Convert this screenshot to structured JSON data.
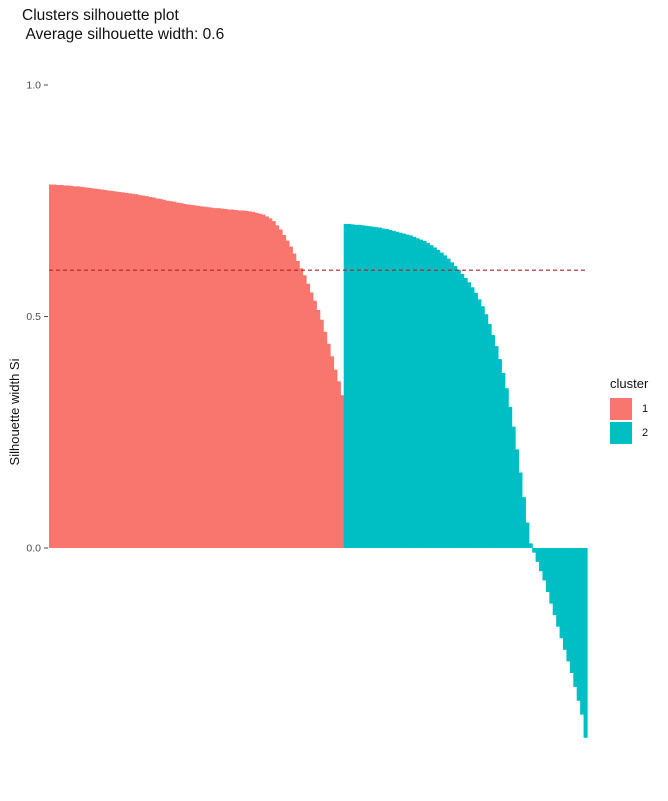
{
  "chart_data": {
    "type": "bar",
    "title": "Clusters silhouette plot",
    "subtitle": " Average silhouette width: 0.6",
    "ylabel": "Silhouette width Si",
    "xlabel": "",
    "ylim": [
      -0.41,
      1.0
    ],
    "yticks": [
      "0.0",
      "0.5",
      "1.0"
    ],
    "average_silhouette": 0.6,
    "grid": false,
    "legend_position": "right",
    "legend_title": "cluster",
    "series": [
      {
        "name": "1",
        "color": "#F8766D",
        "values": [
          0.785,
          0.785,
          0.784,
          0.784,
          0.783,
          0.783,
          0.782,
          0.781,
          0.781,
          0.78,
          0.779,
          0.778,
          0.777,
          0.776,
          0.775,
          0.774,
          0.773,
          0.772,
          0.771,
          0.77,
          0.769,
          0.768,
          0.767,
          0.766,
          0.765,
          0.764,
          0.762,
          0.761,
          0.76,
          0.758,
          0.757,
          0.755,
          0.754,
          0.752,
          0.75,
          0.749,
          0.748,
          0.746,
          0.745,
          0.743,
          0.742,
          0.741,
          0.74,
          0.739,
          0.738,
          0.737,
          0.736,
          0.735,
          0.734,
          0.734,
          0.733,
          0.732,
          0.731,
          0.731,
          0.73,
          0.729,
          0.729,
          0.728,
          0.727,
          0.726,
          0.724,
          0.722,
          0.72,
          0.716,
          0.712,
          0.706,
          0.697,
          0.688,
          0.676,
          0.664,
          0.651,
          0.636,
          0.62,
          0.604,
          0.589,
          0.571,
          0.552,
          0.534,
          0.514,
          0.493,
          0.467,
          0.441,
          0.414,
          0.385,
          0.36,
          0.33
        ]
      },
      {
        "name": "2",
        "color": "#00BFC4",
        "values": [
          0.7,
          0.7,
          0.699,
          0.698,
          0.698,
          0.697,
          0.696,
          0.695,
          0.694,
          0.693,
          0.692,
          0.69,
          0.689,
          0.687,
          0.685,
          0.683,
          0.681,
          0.679,
          0.677,
          0.675,
          0.672,
          0.669,
          0.666,
          0.663,
          0.659,
          0.654,
          0.649,
          0.644,
          0.638,
          0.632,
          0.625,
          0.617,
          0.609,
          0.601,
          0.592,
          0.583,
          0.574,
          0.563,
          0.551,
          0.537,
          0.522,
          0.505,
          0.484,
          0.46,
          0.436,
          0.408,
          0.378,
          0.345,
          0.305,
          0.262,
          0.213,
          0.163,
          0.11,
          0.055,
          0.01,
          -0.01,
          -0.03,
          -0.05,
          -0.07,
          -0.095,
          -0.12,
          -0.145,
          -0.17,
          -0.195,
          -0.22,
          -0.245,
          -0.27,
          -0.3,
          -0.33,
          -0.36,
          -0.41
        ]
      }
    ]
  }
}
